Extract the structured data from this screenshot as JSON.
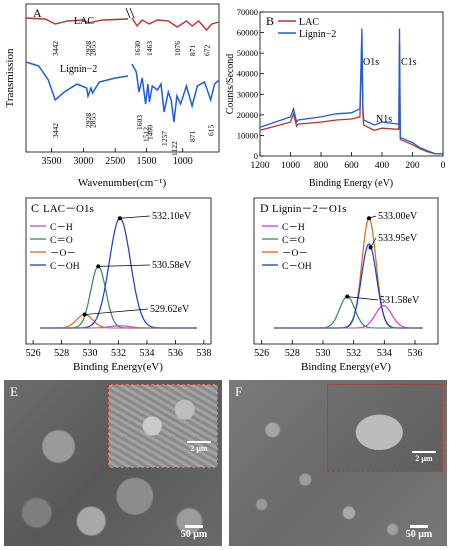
{
  "colors": {
    "red": "#b5352e",
    "blue": "#1f5ed6",
    "magenta": "#cc44cc",
    "green": "#2e8b57",
    "orange": "#d2691e",
    "navy": "#1a3cc8"
  },
  "chart_data": [
    {
      "id": "A",
      "type": "line",
      "letter": "A",
      "xlabel": "Wavenumber(cm⁻¹)",
      "ylabel": "Transmission",
      "xticks": [
        "3500",
        "3000",
        "2500",
        "1500",
        "1000"
      ],
      "series": [
        {
          "name": "LAC",
          "peaks": [
            "3442",
            "2928",
            "2855",
            "1630",
            "1463",
            "1076",
            "871",
            "672"
          ]
        },
        {
          "name": "Lignin−2",
          "peaks": [
            "3442",
            "2928",
            "2855",
            "1603",
            "1512",
            "1460",
            "1257",
            "1122",
            "871",
            "615"
          ]
        }
      ]
    },
    {
      "id": "B",
      "type": "line",
      "letter": "B",
      "xlabel": "Binding Energy (eV)",
      "ylabel": "Counts/Second",
      "xlim": [
        1200,
        0
      ],
      "ylim": [
        0,
        70000
      ],
      "xticks": [
        "1200",
        "1000",
        "800",
        "600",
        "400",
        "200",
        "0"
      ],
      "yticks": [
        "0",
        "10000",
        "20000",
        "30000",
        "40000",
        "50000",
        "60000",
        "70000"
      ],
      "annotations": [
        "O1s",
        "C1s",
        "N1s"
      ],
      "series": [
        {
          "name": "LAC",
          "points": [
            [
              1200,
              12500
            ],
            [
              1000,
              16500
            ],
            [
              980,
              20500
            ],
            [
              960,
              14500
            ],
            [
              950,
              15500
            ],
            [
              800,
              16500
            ],
            [
              700,
              17500
            ],
            [
              600,
              18000
            ],
            [
              545,
              19000
            ],
            [
              532,
              52000
            ],
            [
              525,
              21000
            ],
            [
              520,
              15000
            ],
            [
              450,
              12500
            ],
            [
              400,
              13500
            ],
            [
              290,
              13000
            ],
            [
              285,
              55000
            ],
            [
              280,
              8000
            ],
            [
              200,
              5500
            ],
            [
              150,
              3500
            ],
            [
              100,
              2000
            ],
            [
              50,
              1000
            ],
            [
              0,
              1000
            ]
          ]
        },
        {
          "name": "Lignin−2",
          "points": [
            [
              1200,
              14000
            ],
            [
              1000,
              19000
            ],
            [
              980,
              23000
            ],
            [
              960,
              16500
            ],
            [
              950,
              17500
            ],
            [
              800,
              19000
            ],
            [
              700,
              20500
            ],
            [
              600,
              21000
            ],
            [
              545,
              23000
            ],
            [
              532,
              62000
            ],
            [
              525,
              23000
            ],
            [
              520,
              17500
            ],
            [
              450,
              15000
            ],
            [
              400,
              16500
            ],
            [
              290,
              15500
            ],
            [
              285,
              62000
            ],
            [
              280,
              9000
            ],
            [
              200,
              6500
            ],
            [
              150,
              4000
            ],
            [
              100,
              2500
            ],
            [
              50,
              1000
            ],
            [
              0,
              1000
            ]
          ]
        }
      ]
    },
    {
      "id": "C",
      "type": "line",
      "title": "LAC－O1s",
      "letter": "C",
      "xlabel": "Binding Energy(eV)",
      "xlim": [
        525.5,
        538.5
      ],
      "xticks": [
        "526",
        "528",
        "530",
        "532",
        "534",
        "536",
        "538"
      ],
      "legend": [
        "C－H",
        "C＝O",
        "－O－",
        "C－OH"
      ],
      "annotations": [
        "532.10eV",
        "530.58eV",
        "529.62eV"
      ],
      "components": [
        {
          "name": "C－H",
          "center": 532.1,
          "height": 0.02,
          "width": 1.0
        },
        {
          "name": "C＝O",
          "center": 530.58,
          "height": 0.55,
          "width": 0.75
        },
        {
          "name": "－O－",
          "center": 529.62,
          "height": 0.12,
          "width": 0.8
        },
        {
          "name": "C－OH",
          "center": 532.1,
          "height": 0.98,
          "width": 1.05
        }
      ]
    },
    {
      "id": "D",
      "type": "line",
      "title": "Lignin－2－O1s",
      "letter": "D",
      "xlabel": "Binding Energy(eV)",
      "xlim": [
        525.5,
        537.5
      ],
      "xticks": [
        "526",
        "528",
        "530",
        "532",
        "534",
        "536"
      ],
      "legend": [
        "C－H",
        "C＝O",
        "－O－",
        "C－OH"
      ],
      "annotations": [
        "533.00eV",
        "533.95eV",
        "531.58eV"
      ],
      "components": [
        {
          "name": "C－H",
          "center": 533.95,
          "height": 0.2,
          "width": 0.75
        },
        {
          "name": "C＝O",
          "center": 531.58,
          "height": 0.28,
          "width": 0.7
        },
        {
          "name": "－O－",
          "center": 533.0,
          "height": 0.98,
          "width": 0.65
        },
        {
          "name": "C－OH",
          "center": 533.0,
          "height": 0.75,
          "width": 0.7
        }
      ]
    }
  ],
  "sem": [
    {
      "letter": "E",
      "scale": "50 μm",
      "inset_scale": "2 μm"
    },
    {
      "letter": "F",
      "scale": "50 μm",
      "inset_scale": "2 μm"
    }
  ]
}
